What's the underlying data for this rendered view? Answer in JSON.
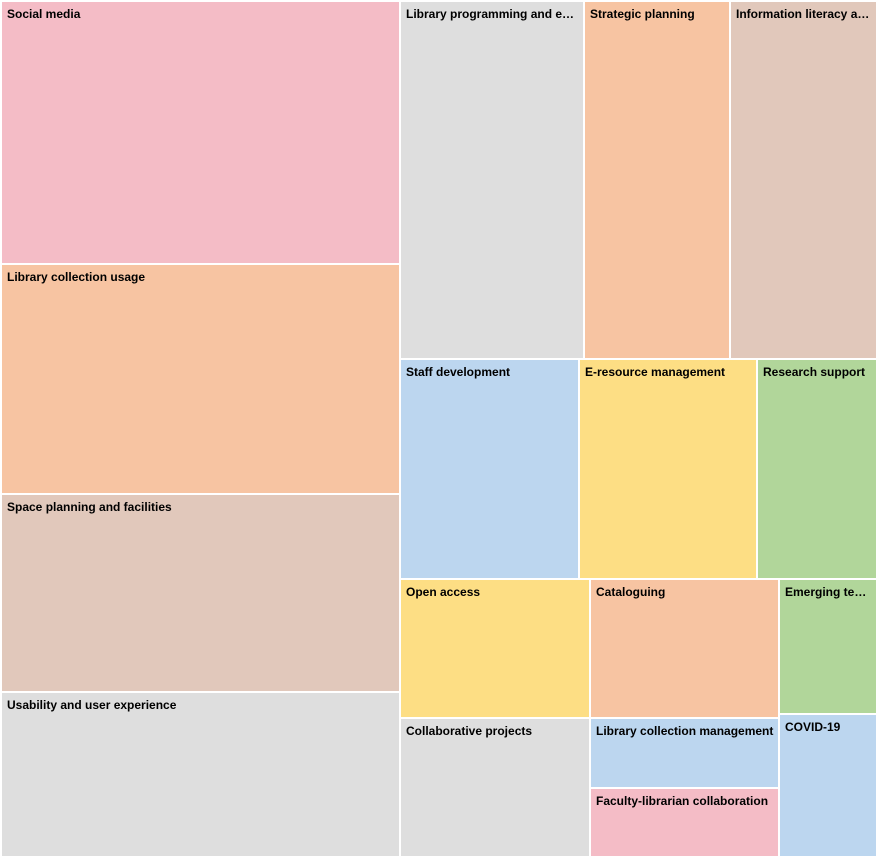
{
  "chart_data": {
    "type": "treemap",
    "colors": {
      "pink": "#f4bcc6",
      "orange": "#f7c4a2",
      "tan": "#e1c8bb",
      "gray": "#dedede",
      "blue": "#bcd6ef",
      "yellow": "#fdde84",
      "green": "#b1d69a"
    },
    "items": [
      {
        "label": "Social media",
        "value": 104,
        "color": "pink"
      },
      {
        "label": "Library collection usage",
        "value": 92,
        "color": "orange"
      },
      {
        "label": "Space planning and facilities",
        "value": 79,
        "color": "tan"
      },
      {
        "label": "Usability and user experience",
        "value": 66,
        "color": "gray"
      },
      {
        "label": "Library programming and events",
        "value": 65,
        "color": "gray"
      },
      {
        "label": "Strategic planning",
        "value": 52,
        "color": "orange"
      },
      {
        "label": "Information literacy and instruction",
        "value": 52,
        "color": "tan"
      },
      {
        "label": "Staff development",
        "value": 39,
        "color": "blue"
      },
      {
        "label": "E-resource management",
        "value": 39,
        "color": "yellow"
      },
      {
        "label": "Research support",
        "value": 26,
        "color": "green"
      },
      {
        "label": "Open access",
        "value": 26,
        "color": "yellow"
      },
      {
        "label": "Cataloguing",
        "value": 26,
        "color": "orange"
      },
      {
        "label": "Emerging technologies",
        "value": 13,
        "color": "green"
      },
      {
        "label": "Collaborative projects",
        "value": 26,
        "color": "gray"
      },
      {
        "label": "Library collection management",
        "value": 13,
        "color": "blue"
      },
      {
        "label": "Faculty-librarian collaboration",
        "value": 13,
        "color": "pink"
      },
      {
        "label": "COVID-19",
        "value": 13,
        "color": "blue"
      }
    ]
  }
}
